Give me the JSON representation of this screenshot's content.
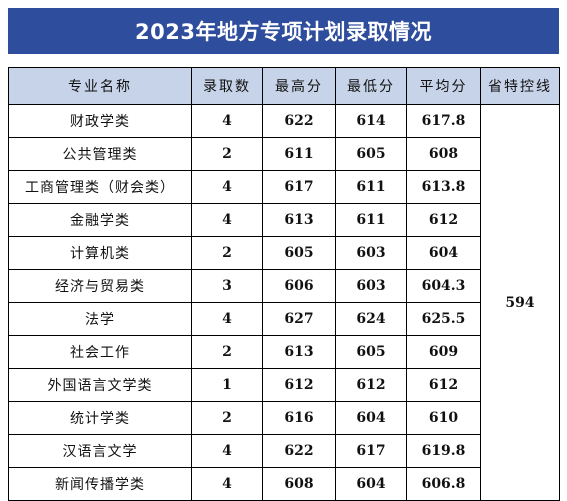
{
  "title": "2023年地方专项计划录取情况",
  "headers": [
    "专业名称",
    "录取数",
    "最高分",
    "最低分",
    "平均分",
    "省特控线"
  ],
  "control_line": "594",
  "rows": [
    {
      "major": "财政学类",
      "admitted": "4",
      "max": "622",
      "min": "614",
      "avg": "617.8"
    },
    {
      "major": "公共管理类",
      "admitted": "2",
      "max": "611",
      "min": "605",
      "avg": "608"
    },
    {
      "major": "工商管理类（财会类）",
      "admitted": "4",
      "max": "617",
      "min": "611",
      "avg": "613.8"
    },
    {
      "major": "金融学类",
      "admitted": "4",
      "max": "613",
      "min": "611",
      "avg": "612"
    },
    {
      "major": "计算机类",
      "admitted": "2",
      "max": "605",
      "min": "603",
      "avg": "604"
    },
    {
      "major": "经济与贸易类",
      "admitted": "3",
      "max": "606",
      "min": "603",
      "avg": "604.3"
    },
    {
      "major": "法学",
      "admitted": "4",
      "max": "627",
      "min": "624",
      "avg": "625.5"
    },
    {
      "major": "社会工作",
      "admitted": "2",
      "max": "613",
      "min": "605",
      "avg": "609"
    },
    {
      "major": "外国语言文学类",
      "admitted": "1",
      "max": "612",
      "min": "612",
      "avg": "612"
    },
    {
      "major": "统计学类",
      "admitted": "2",
      "max": "616",
      "min": "604",
      "avg": "610"
    },
    {
      "major": "汉语言文学",
      "admitted": "4",
      "max": "622",
      "min": "617",
      "avg": "619.8"
    },
    {
      "major": "新闻传播学类",
      "admitted": "4",
      "max": "608",
      "min": "604",
      "avg": "606.8"
    }
  ],
  "colors": {
    "banner": "#2e4d9c",
    "header_fill": "#c7d3e8",
    "banner_text": "#ffffff"
  }
}
